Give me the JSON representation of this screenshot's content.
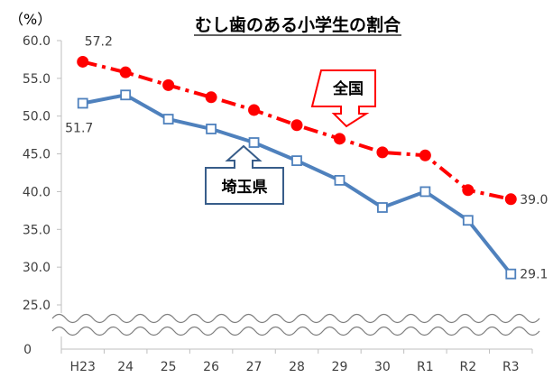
{
  "chart_data": {
    "type": "line",
    "title": "むし歯のある小学生の割合",
    "unit_label": "（%）",
    "categories": [
      "H23",
      "24",
      "25",
      "26",
      "27",
      "28",
      "29",
      "30",
      "R1",
      "R2",
      "R3"
    ],
    "ylim": [
      25.0,
      60.0
    ],
    "yticks": [
      "60.0",
      "55.0",
      "50.0",
      "45.0",
      "40.0",
      "35.0",
      "30.0",
      "25.0"
    ],
    "y_zero_label": "0",
    "axis_break": true,
    "grid": false,
    "series": [
      {
        "name": "全国",
        "values": [
          57.2,
          55.8,
          54.1,
          52.5,
          50.8,
          48.8,
          47.0,
          45.2,
          44.8,
          40.2,
          39.0
        ],
        "color": "#FF0000",
        "marker": "circle",
        "line_style": "dash-dot",
        "first_label": "57.2",
        "last_label": "39.0"
      },
      {
        "name": "埼玉県",
        "values": [
          51.7,
          52.8,
          49.6,
          48.3,
          46.5,
          44.1,
          41.5,
          37.9,
          40.0,
          36.2,
          29.1
        ],
        "color": "#4F81BD",
        "marker": "square",
        "line_style": "solid",
        "first_label": "51.7",
        "last_label": "29.1"
      }
    ]
  }
}
